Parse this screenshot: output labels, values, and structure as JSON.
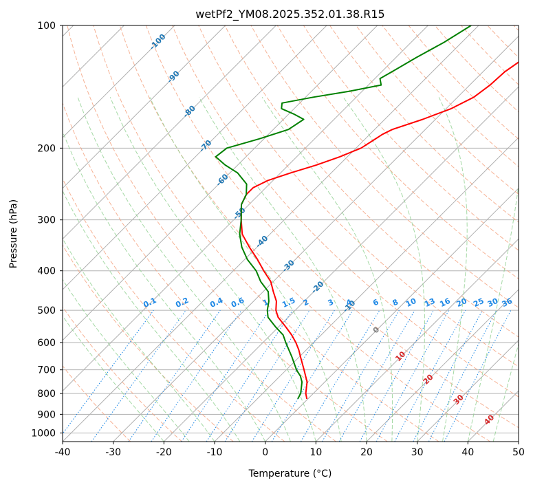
{
  "chart_data": {
    "type": "line",
    "subtype": "skew-t log-p diagram",
    "title": "wetPf2_YM08.2025.352.01.38.R15",
    "xlabel": "Temperature (°C)",
    "ylabel": "Pressure (hPa)",
    "xlim": [
      -40,
      50
    ],
    "ylim": [
      1050,
      100
    ],
    "y_scale": "log",
    "grid": true,
    "x_ticks": [
      "-40",
      "-30",
      "-20",
      "-10",
      "0",
      "10",
      "20",
      "30",
      "40",
      "50"
    ],
    "x_tick_values": [
      -40,
      -30,
      -20,
      -10,
      0,
      10,
      20,
      30,
      40,
      50
    ],
    "y_ticks": [
      "100",
      "200",
      "300",
      "400",
      "500",
      "600",
      "700",
      "800",
      "900",
      "1000"
    ],
    "y_tick_values": [
      100,
      200,
      300,
      400,
      500,
      600,
      700,
      800,
      900,
      1000
    ],
    "isotherm_labels": {
      "values": [
        -100,
        -90,
        -80,
        -70,
        -60,
        -50,
        -40,
        -30,
        -20,
        -10,
        0,
        10,
        20,
        30,
        40
      ],
      "texts": [
        "-100",
        "-90",
        "-80",
        "-70",
        "-60",
        "-50",
        "-40",
        "-30",
        "-20",
        "-10",
        "0",
        "10",
        "20",
        "30",
        "40"
      ]
    },
    "mixing_ratio_labels": {
      "values": [
        0.1,
        0.2,
        0.4,
        0.6,
        1,
        1.5,
        2,
        3,
        4,
        6,
        8,
        10,
        13,
        16,
        20,
        25,
        30,
        36
      ],
      "texts": [
        "0.1",
        "0.2",
        "0.4",
        "0.6",
        "1",
        "1.5",
        "2",
        "3",
        "4",
        "6",
        "8",
        "10",
        "13",
        "16",
        "20",
        "25",
        "30",
        "36"
      ]
    },
    "series": [
      {
        "kind": "temperature",
        "color": "#ff0000",
        "points": [
          [
            100,
            -20.1
          ],
          [
            105,
            -21.0
          ],
          [
            110,
            -22.5
          ],
          [
            120,
            -24.5
          ],
          [
            130,
            -25.7
          ],
          [
            140,
            -26.0
          ],
          [
            150,
            -26.8
          ],
          [
            160,
            -29.0
          ],
          [
            170,
            -32.5
          ],
          [
            180,
            -36.5
          ],
          [
            185,
            -37.5
          ],
          [
            190,
            -38.0
          ],
          [
            200,
            -39.0
          ],
          [
            210,
            -41.5
          ],
          [
            220,
            -44.5
          ],
          [
            230,
            -48.0
          ],
          [
            240,
            -51.0
          ],
          [
            250,
            -52.5
          ],
          [
            260,
            -52.5
          ],
          [
            275,
            -51.5
          ],
          [
            300,
            -48.5
          ],
          [
            325,
            -45.5
          ],
          [
            350,
            -41.5
          ],
          [
            375,
            -37.5
          ],
          [
            400,
            -34.0
          ],
          [
            425,
            -30.5
          ],
          [
            450,
            -28.0
          ],
          [
            475,
            -25.5
          ],
          [
            500,
            -23.8
          ],
          [
            520,
            -22.0
          ],
          [
            550,
            -18.5
          ],
          [
            575,
            -15.8
          ],
          [
            600,
            -13.5
          ],
          [
            625,
            -11.5
          ],
          [
            650,
            -9.8
          ],
          [
            700,
            -6.5
          ],
          [
            750,
            -3.5
          ],
          [
            800,
            -1.5
          ],
          [
            825,
            -0.2
          ]
        ]
      },
      {
        "kind": "dewpoint",
        "color": "#008000",
        "points": [
          [
            100,
            -41.5
          ],
          [
            110,
            -43.5
          ],
          [
            120,
            -46.0
          ],
          [
            130,
            -48.0
          ],
          [
            135,
            -49.0
          ],
          [
            140,
            -47.5
          ],
          [
            145,
            -52.5
          ],
          [
            150,
            -58.5
          ],
          [
            155,
            -63.5
          ],
          [
            160,
            -62.5
          ],
          [
            165,
            -59.0
          ],
          [
            170,
            -56.0
          ],
          [
            180,
            -57.0
          ],
          [
            190,
            -61.0
          ],
          [
            200,
            -65.5
          ],
          [
            210,
            -66.0
          ],
          [
            220,
            -62.5
          ],
          [
            230,
            -58.5
          ],
          [
            245,
            -54.5
          ],
          [
            260,
            -52.5
          ],
          [
            275,
            -51.5
          ],
          [
            300,
            -48.5
          ],
          [
            325,
            -46.0
          ],
          [
            350,
            -43.0
          ],
          [
            375,
            -39.5
          ],
          [
            400,
            -35.5
          ],
          [
            425,
            -32.5
          ],
          [
            450,
            -29.0
          ],
          [
            475,
            -27.0
          ],
          [
            500,
            -25.5
          ],
          [
            520,
            -24.0
          ],
          [
            550,
            -20.5
          ],
          [
            575,
            -17.5
          ],
          [
            600,
            -15.5
          ],
          [
            650,
            -11.5
          ],
          [
            700,
            -8.0
          ],
          [
            725,
            -6.0
          ],
          [
            750,
            -4.5
          ],
          [
            800,
            -2.5
          ],
          [
            825,
            -2.0
          ]
        ]
      }
    ]
  }
}
